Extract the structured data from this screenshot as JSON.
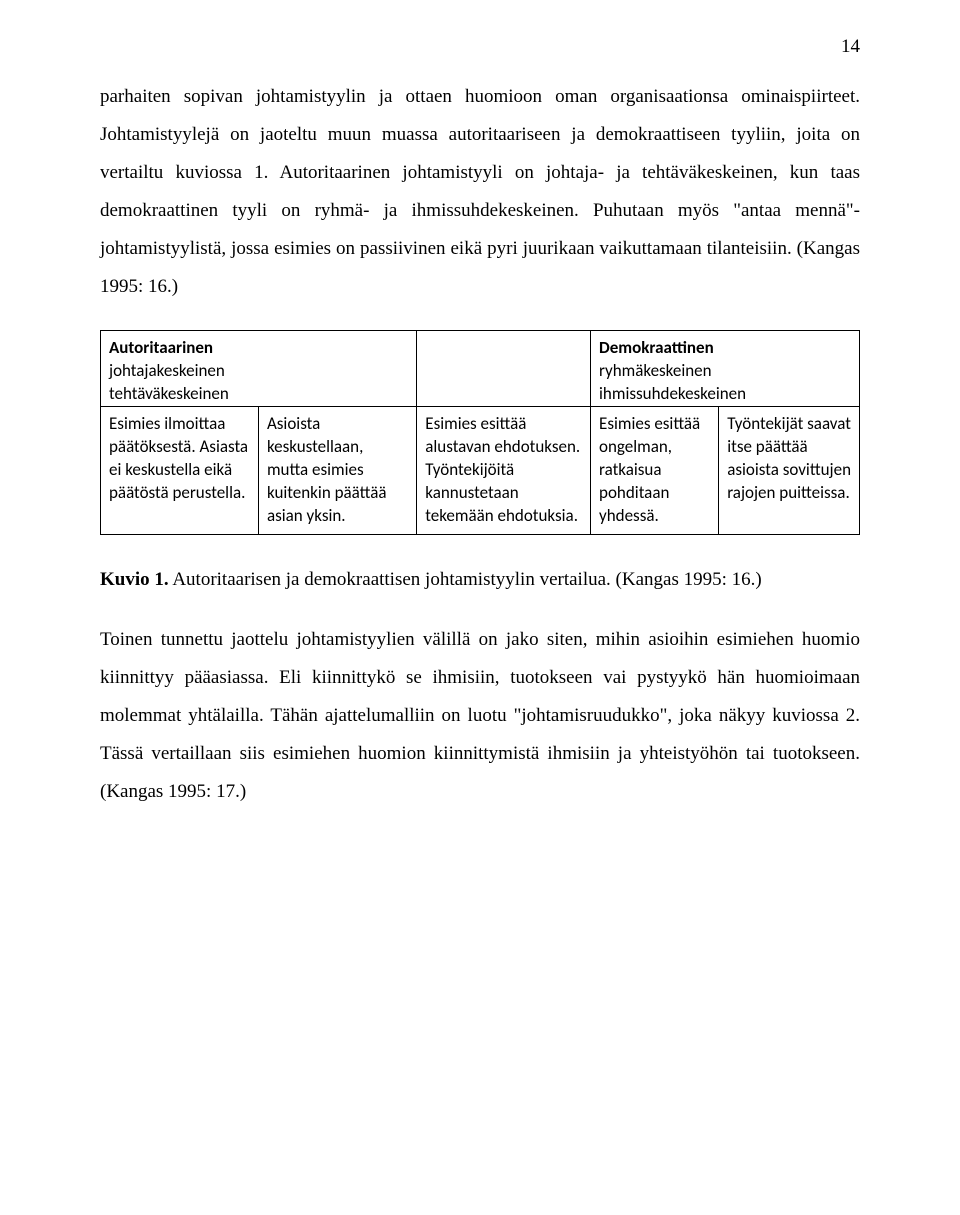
{
  "page_number": "14",
  "para1": "parhaiten sopivan johtamistyylin ja ottaen huomioon oman organisaationsa ominaispiirteet. Johtamistyylejä on jaoteltu muun muassa autoritaariseen ja demokraattiseen tyyliin, joita on vertailtu kuviossa 1. Autoritaarinen johtamistyyli on johtaja- ja tehtäväkeskeinen, kun taas demokraattinen tyyli on ryhmä- ja ihmissuhdekeskeinen. Puhutaan myös \"antaa mennä\"-johtamistyylistä, jossa esimies on passiivinen eikä pyri juurikaan vaikuttamaan tilanteisiin. (Kangas 1995: 16.)",
  "table": {
    "header": {
      "left_bold": "Autoritaarinen",
      "left_sub1": "johtajakeskeinen",
      "left_sub2": "tehtäväkeskeinen",
      "right_bold": "Demokraattinen",
      "right_sub1": "ryhmäkeskeinen",
      "right_sub2": "ihmissuhdekeskeinen"
    },
    "cells": {
      "c1": "Esimies ilmoittaa päätöksestä. Asiasta ei keskustella eikä päätöstä perustella.",
      "c2": "Asioista keskustellaan, mutta esimies kuitenkin päättää asian yksin.",
      "c3": "Esimies esittää alustavan ehdotuksen. Työntekijöitä kannustetaan tekemään ehdotuksia.",
      "c4": "Esimies esittää ongelman, ratkaisua pohditaan yhdessä.",
      "c5": "Työntekijät saavat itse päättää asioista sovittujen rajojen puitteissa."
    },
    "col_widths": [
      "20%",
      "20%",
      "20%",
      "20%",
      "20%"
    ],
    "border_color": "#000000",
    "font_family": "Calibri",
    "font_size_pt": 12
  },
  "caption_bold": "Kuvio 1.",
  "caption_rest": " Autoritaarisen ja demokraattisen johtamistyylin vertailua. (Kangas 1995: 16.)",
  "para2": "Toinen tunnettu jaottelu johtamistyylien välillä on jako siten, mihin asioihin esimiehen huomio kiinnittyy pääasiassa. Eli kiinnittykö se ihmisiin, tuotokseen vai pystyykö hän huomioimaan molemmat yhtälailla. Tähän ajattelumalliin on luotu \"johtamisruudukko\", joka näkyy kuviossa 2. Tässä vertaillaan siis esimiehen huomion kiinnittymistä ihmisiin ja yhteistyöhön tai tuotokseen. (Kangas 1995: 17.)",
  "colors": {
    "background": "#ffffff",
    "text": "#000000"
  },
  "typography": {
    "body_font": "Times New Roman",
    "body_size_pt": 14,
    "line_height": 2.0,
    "table_font": "Calibri",
    "table_size_pt": 12
  }
}
